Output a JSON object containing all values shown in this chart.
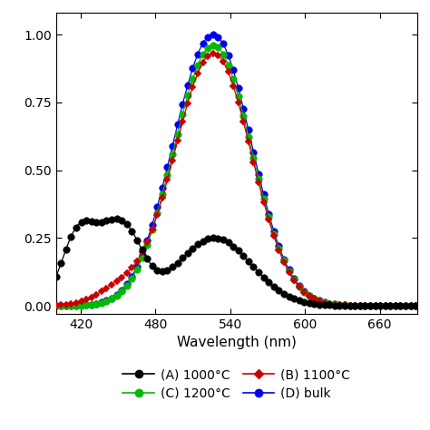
{
  "title": "",
  "xlabel": "Wavelength (nm)",
  "ylabel": "",
  "xlim": [
    400,
    690
  ],
  "ylim": [
    -0.03,
    1.08
  ],
  "yticks": [
    0.0,
    0.25,
    0.5,
    0.75,
    1.0
  ],
  "xticks": [
    420,
    480,
    540,
    600,
    660
  ],
  "series": {
    "A_1000": {
      "color": "#000000",
      "marker": "o",
      "label": "(A) 1000°C",
      "zorder": 4
    },
    "B_1100": {
      "color": "#cc0000",
      "marker": "D",
      "label": "(B) 1100°C",
      "zorder": 3
    },
    "C_1200": {
      "color": "#00bb00",
      "marker": "o",
      "label": "(C) 1200°C",
      "zorder": 2
    },
    "D_bulk": {
      "color": "#0000ee",
      "marker": "o",
      "label": "(D) bulk",
      "zorder": 1
    }
  },
  "background_color": "#ffffff",
  "figsize": [
    4.74,
    4.74
  ],
  "dpi": 100
}
